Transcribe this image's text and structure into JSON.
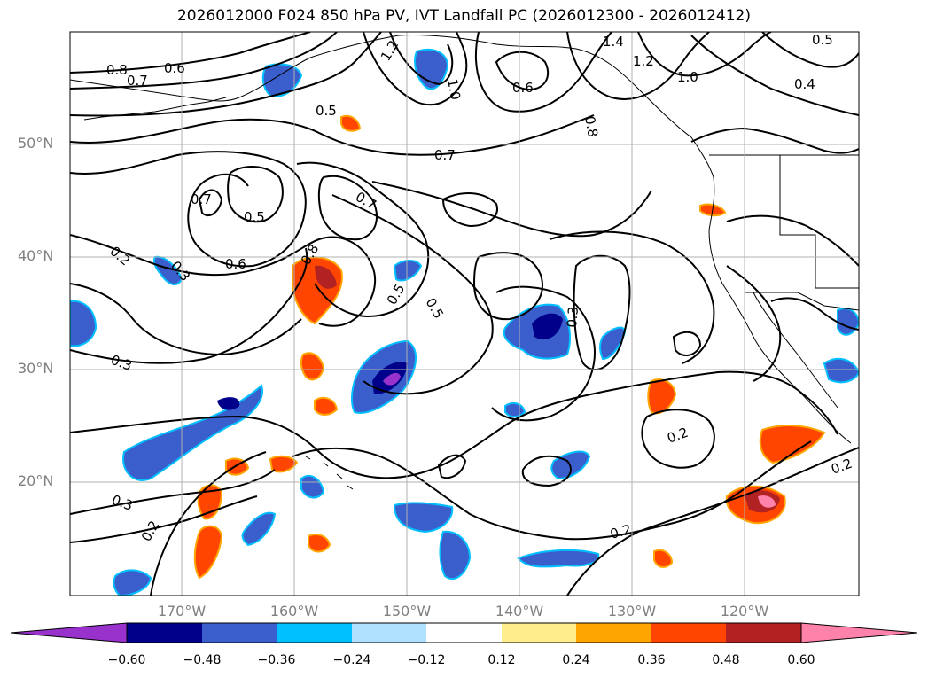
{
  "title": "2026012000 F024 850 hPa PV, IVT Landfall PC (2026012300 - 2026012412)",
  "lat_labels": [
    "50°N",
    "40°N",
    "30°N",
    "20°N"
  ],
  "lon_labels": [
    "170°W",
    "160°W",
    "150°W",
    "140°W",
    "130°W",
    "120°W"
  ],
  "contour_labels": [
    "0.8",
    "0.7",
    "0.6",
    "1.2",
    "1.0",
    "0.6",
    "1.4",
    "1.2",
    "1.0",
    "0.5",
    "0.5",
    "0.4",
    "0.8",
    "0.5",
    "0.7",
    "0.7",
    "0.5",
    "0.7",
    "0.6",
    "0.8",
    "0.2",
    "0.3",
    "0.5",
    "0.3",
    "0.3",
    "0.2",
    "0.3",
    "0.2",
    "0.2",
    "0.2"
  ],
  "colorbar": {
    "ticks": [
      "−0.60",
      "−0.48",
      "−0.36",
      "−0.24",
      "−0.12",
      "0.12",
      "0.24",
      "0.36",
      "0.48",
      "0.60"
    ],
    "colors": [
      "#9932cc",
      "#00008b",
      "#3a5fcd",
      "#00bfff",
      "#b0e2ff",
      "#ffffff",
      "#ffec8b",
      "#ffa500",
      "#ff4500",
      "#b22222",
      "#ff82ab"
    ]
  },
  "chart_data": {
    "type": "map",
    "variable": "850 hPa PV, IVT Landfall PC",
    "lon_range": [
      -180,
      -110
    ],
    "lat_range": [
      10,
      60
    ],
    "contour_levels": [
      0.2,
      0.3,
      0.4,
      0.5,
      0.6,
      0.7,
      0.8,
      1.0,
      1.2,
      1.4
    ],
    "shading_levels": [
      -0.6,
      -0.48,
      -0.36,
      -0.24,
      -0.12,
      0.12,
      0.24,
      0.36,
      0.48,
      0.6
    ]
  }
}
